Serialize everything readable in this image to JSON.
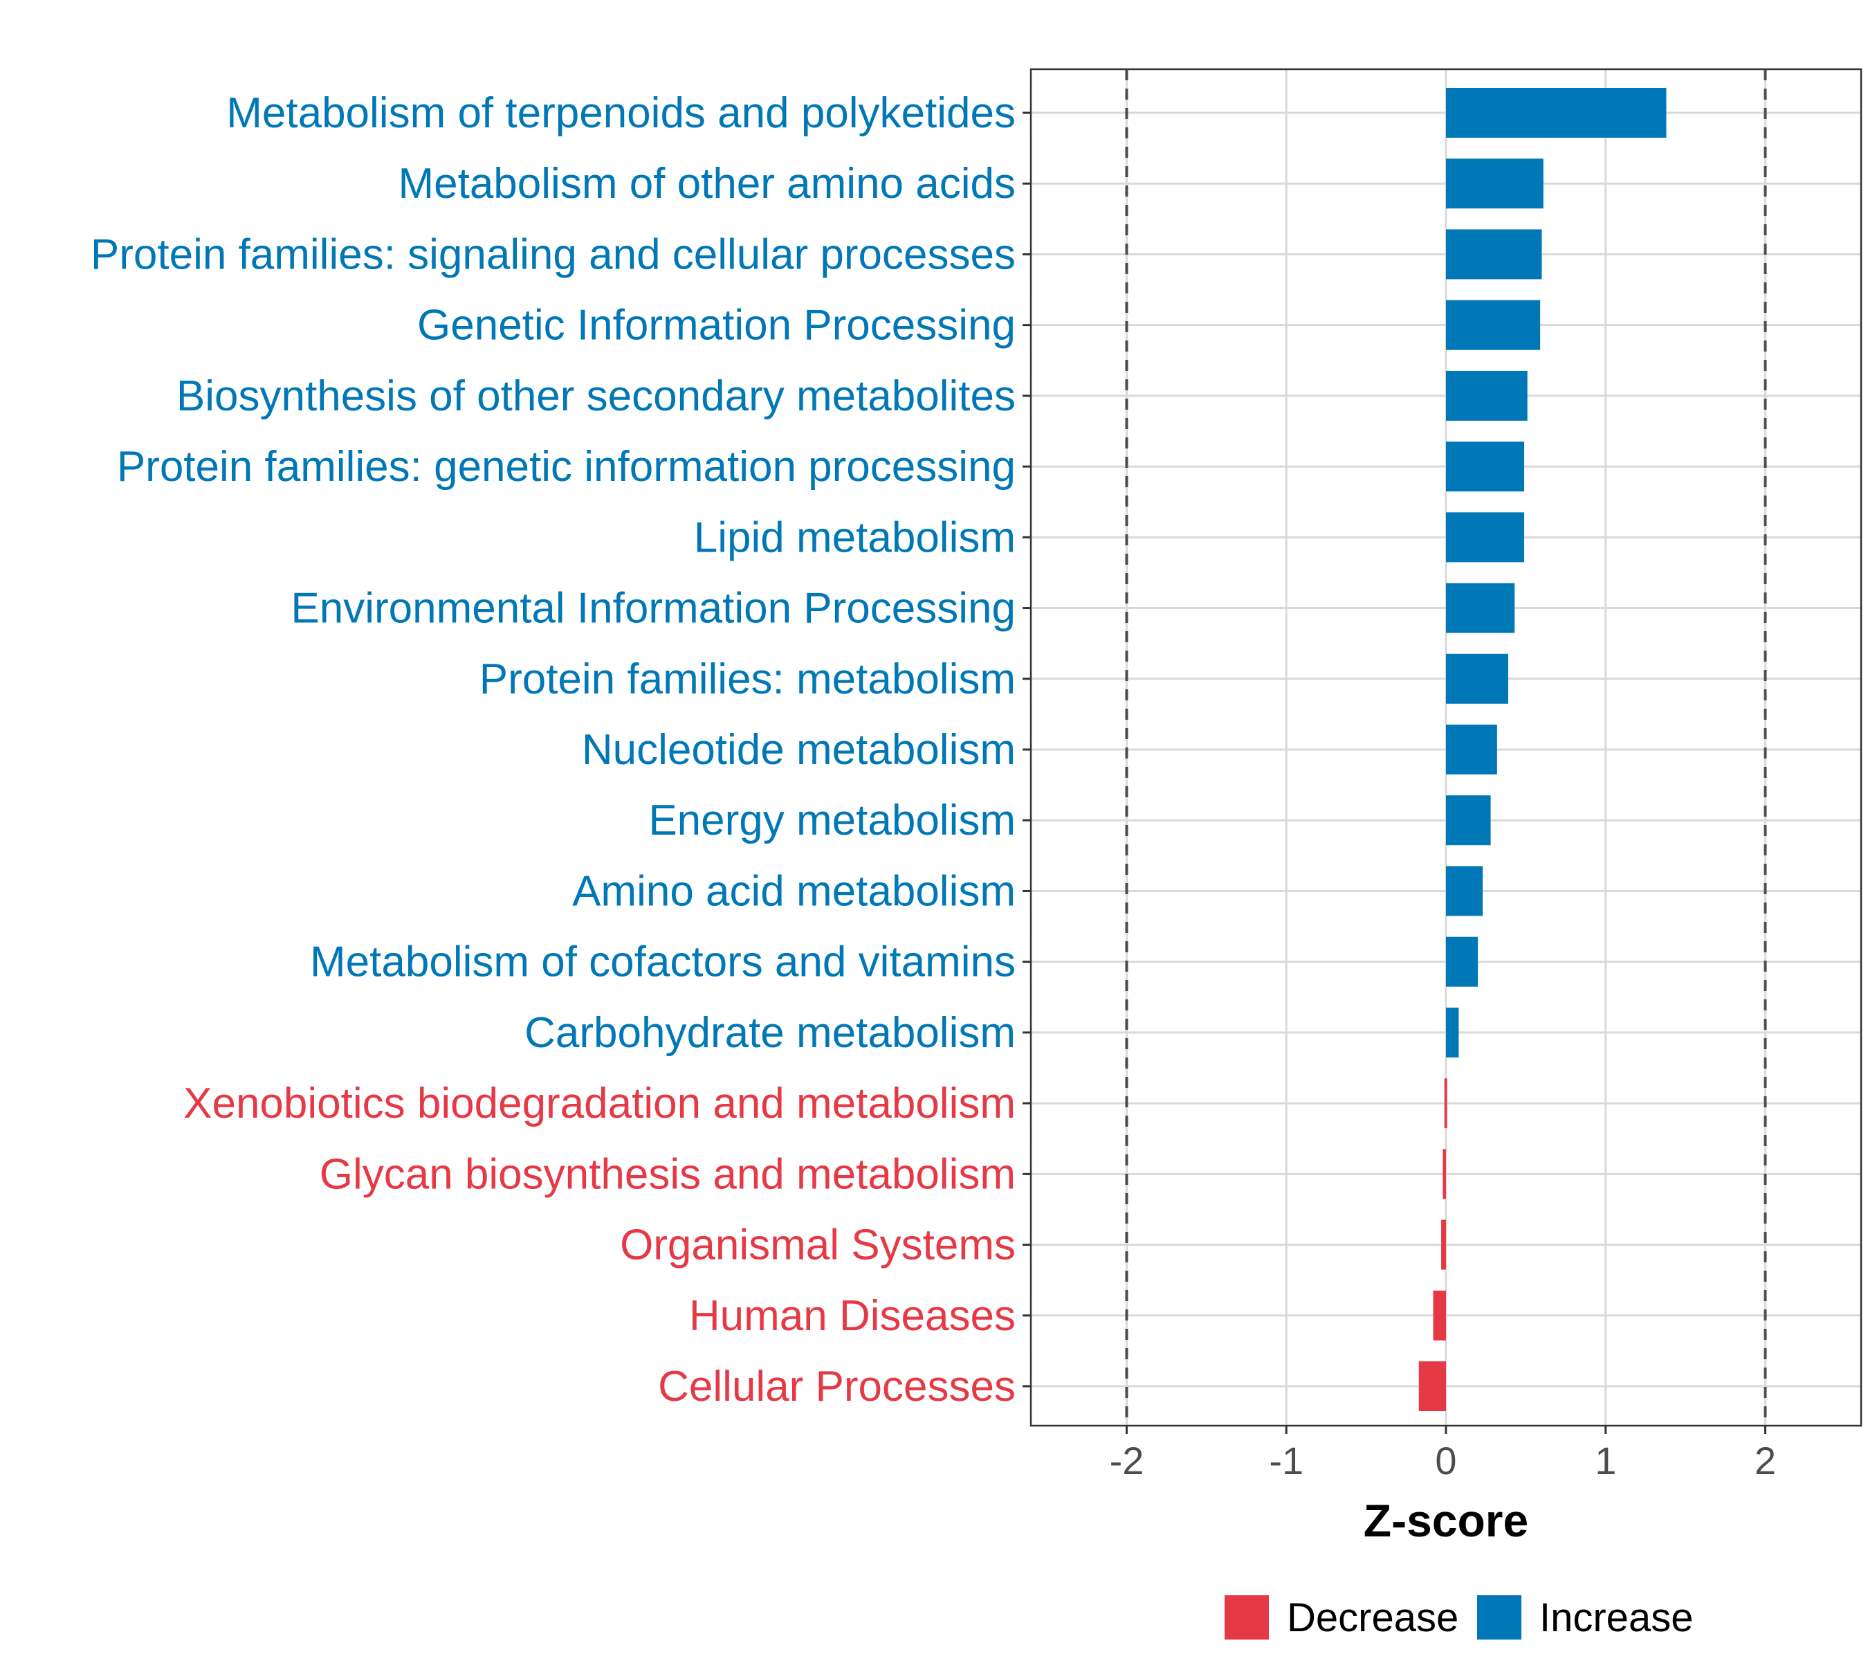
{
  "chart_data": {
    "type": "bar",
    "orientation": "horizontal",
    "title": "",
    "xlabel": "Z-score",
    "ylabel": "",
    "xlim": [
      -2.6,
      2.6
    ],
    "x_ticks": [
      -2,
      -1,
      0,
      1,
      2
    ],
    "x_tick_labels": [
      "-2",
      "-1",
      "0",
      "1",
      "2"
    ],
    "reference_lines": [
      -2,
      2
    ],
    "grid": true,
    "legend_position": "bottom",
    "categories": [
      "Metabolism of terpenoids and polyketides",
      "Metabolism of other amino acids",
      "Protein families: signaling and cellular processes",
      "Genetic Information Processing",
      "Biosynthesis of other secondary metabolites",
      "Protein families: genetic information processing",
      "Lipid metabolism",
      "Environmental Information Processing",
      "Protein families: metabolism",
      "Nucleotide metabolism",
      "Energy metabolism",
      "Amino acid metabolism",
      "Metabolism of cofactors and vitamins",
      "Carbohydrate metabolism",
      "Xenobiotics biodegradation and metabolism",
      "Glycan biosynthesis and metabolism",
      "Organismal Systems",
      "Human Diseases",
      "Cellular Processes"
    ],
    "values": [
      1.38,
      0.61,
      0.6,
      0.59,
      0.51,
      0.49,
      0.49,
      0.43,
      0.39,
      0.32,
      0.28,
      0.23,
      0.2,
      0.08,
      -0.01,
      -0.02,
      -0.03,
      -0.08,
      -0.17
    ],
    "groups": [
      "Increase",
      "Increase",
      "Increase",
      "Increase",
      "Increase",
      "Increase",
      "Increase",
      "Increase",
      "Increase",
      "Increase",
      "Increase",
      "Increase",
      "Increase",
      "Increase",
      "Decrease",
      "Decrease",
      "Decrease",
      "Decrease",
      "Decrease"
    ],
    "legend": [
      {
        "name": "Decrease",
        "color": "#e63946"
      },
      {
        "name": "Increase",
        "color": "#0077b6"
      }
    ]
  }
}
